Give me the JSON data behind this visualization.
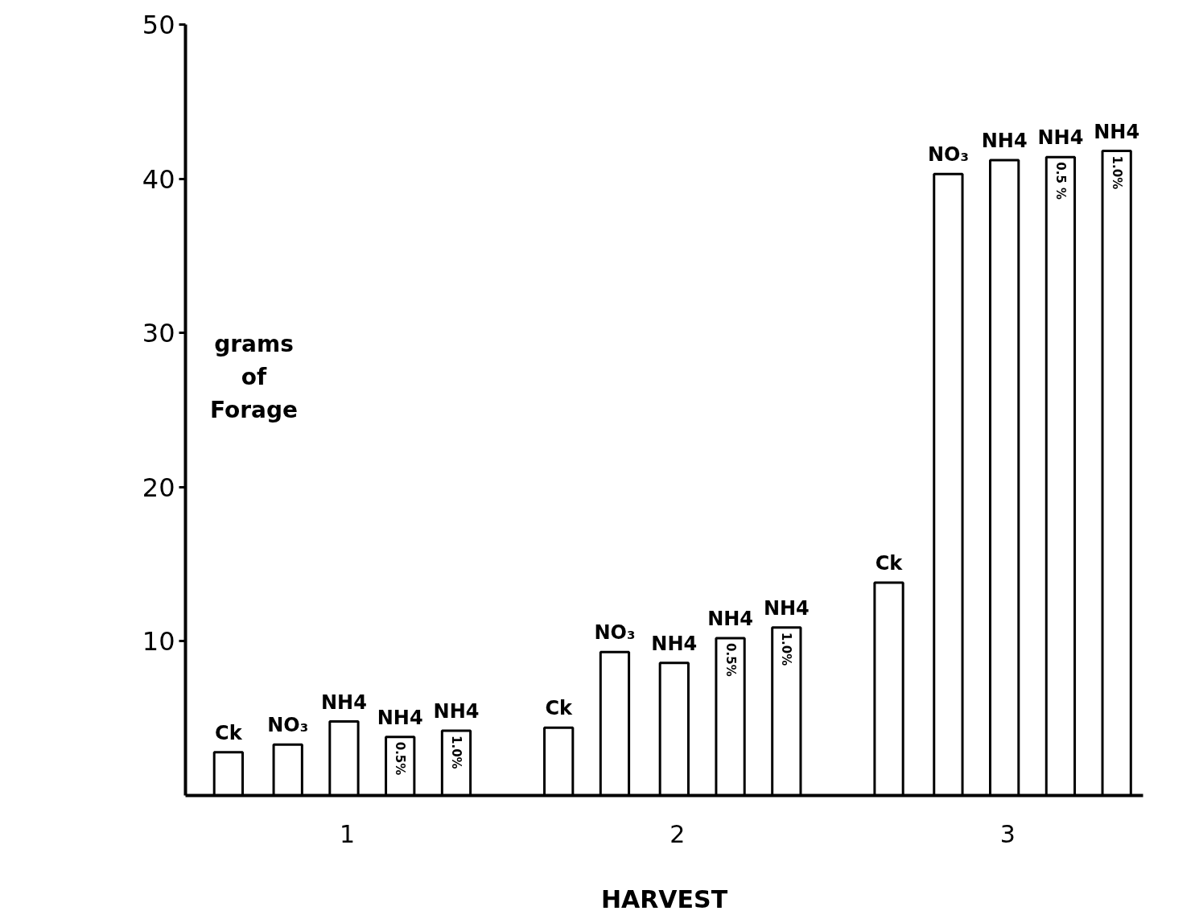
{
  "chart_data": {
    "type": "bar",
    "xlabel": "HARVEST",
    "ylabel": "grams of Forage",
    "x": [
      0.64,
      0.82,
      0.99,
      1.16,
      1.33,
      1.64,
      1.81,
      1.99,
      2.16,
      2.33,
      2.64,
      2.82,
      2.99,
      3.16,
      3.33
    ],
    "values": [
      2.8,
      3.3,
      4.8,
      3.8,
      4.2,
      4.4,
      9.3,
      8.6,
      10.2,
      10.9,
      13.8,
      40.3,
      41.2,
      41.4,
      41.8
    ],
    "color": "#ffffff",
    "xlim": [
      0.51,
      3.41
    ],
    "xticks": [
      1,
      2,
      3
    ],
    "ylim": [
      0,
      50
    ],
    "yticks": [
      10,
      20,
      30,
      40,
      50
    ],
    "grid": false,
    "annotations": [
      {
        "text": "Ck",
        "x": 0.64,
        "y": 2.8
      },
      {
        "text": "NO₃",
        "x": 0.82,
        "y": 3.3
      },
      {
        "text": "NH4",
        "x": 0.99,
        "y": 4.8
      },
      {
        "text": "NH4",
        "x": 1.16,
        "y": 3.8
      },
      {
        "text": "0.5%",
        "x": 1.16,
        "y": 3.8
      },
      {
        "text": "NH4",
        "x": 1.33,
        "y": 4.2
      },
      {
        "text": "1.0%",
        "x": 1.33,
        "y": 4.2
      },
      {
        "text": "Ck",
        "x": 1.64,
        "y": 4.4
      },
      {
        "text": "NO₃",
        "x": 1.81,
        "y": 9.3
      },
      {
        "text": "NH4",
        "x": 1.99,
        "y": 8.6
      },
      {
        "text": "NH4",
        "x": 2.16,
        "y": 10.2
      },
      {
        "text": "0.5%",
        "x": 2.16,
        "y": 10.2
      },
      {
        "text": "NH4",
        "x": 2.33,
        "y": 10.9
      },
      {
        "text": "1.0%",
        "x": 2.33,
        "y": 10.9
      },
      {
        "text": "Ck",
        "x": 2.64,
        "y": 13.8
      },
      {
        "text": "NO₃",
        "x": 2.82,
        "y": 40.3
      },
      {
        "text": "NH4",
        "x": 2.99,
        "y": 41.2
      },
      {
        "text": "NH4",
        "x": 3.16,
        "y": 41.4
      },
      {
        "text": "0.5 %",
        "x": 3.16,
        "y": 41.4
      },
      {
        "text": "NH4",
        "x": 3.33,
        "y": 41.8
      },
      {
        "text": "1.0%",
        "x": 3.33,
        "y": 41.8
      }
    ]
  }
}
